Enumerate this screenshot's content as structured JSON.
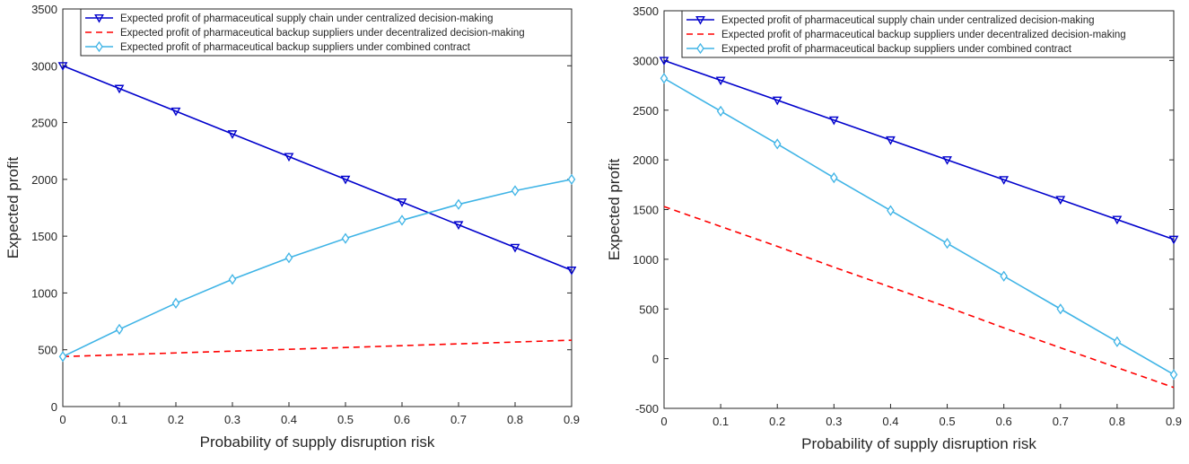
{
  "chart_data": [
    {
      "type": "line",
      "xlabel": "Probability of supply disruption risk",
      "ylabel": "Expected profit",
      "xlim": [
        0,
        0.9
      ],
      "ylim": [
        0,
        3500
      ],
      "xticks": [
        "0",
        "0.1",
        "0.2",
        "0.3",
        "0.4",
        "0.5",
        "0.6",
        "0.7",
        "0.8",
        "0.9"
      ],
      "yticks": [
        "0",
        "500",
        "1000",
        "1500",
        "2000",
        "2500",
        "3000",
        "3500"
      ],
      "x": [
        0,
        0.1,
        0.2,
        0.3,
        0.4,
        0.5,
        0.6,
        0.7,
        0.8,
        0.9
      ],
      "legend_position": "top",
      "series": [
        {
          "name": "Expected profit of pharmaceutical supply chain under centralized decision-making",
          "color": "#0000cc",
          "style": "solid",
          "marker": "triangle-down",
          "values": [
            3000,
            2800,
            2600,
            2400,
            2200,
            2000,
            1800,
            1600,
            1400,
            1200
          ]
        },
        {
          "name": "Expected profit of pharmaceutical backup suppliers under decentralized decision-making",
          "color": "#ff0000",
          "style": "dashed",
          "marker": "none",
          "values": [
            440,
            456,
            472,
            488,
            504,
            520,
            536,
            552,
            568,
            584
          ]
        },
        {
          "name": "Expected profit of pharmaceutical backup suppliers under combined contract",
          "color": "#3fb4e6",
          "style": "solid",
          "marker": "diamond",
          "values": [
            440,
            680,
            910,
            1120,
            1310,
            1480,
            1640,
            1780,
            1900,
            2000
          ]
        }
      ]
    },
    {
      "type": "line",
      "xlabel": "Probability of supply disruption risk",
      "ylabel": "Expected profit",
      "xlim": [
        0,
        0.9
      ],
      "ylim": [
        -500,
        3500
      ],
      "xticks": [
        "0",
        "0.1",
        "0.2",
        "0.3",
        "0.4",
        "0.5",
        "0.6",
        "0.7",
        "0.8",
        "0.9"
      ],
      "yticks": [
        "-500",
        "0",
        "500",
        "1000",
        "1500",
        "2000",
        "2500",
        "3000",
        "3500"
      ],
      "x": [
        0,
        0.1,
        0.2,
        0.3,
        0.4,
        0.5,
        0.6,
        0.7,
        0.8,
        0.9
      ],
      "legend_position": "top",
      "series": [
        {
          "name": "Expected profit of pharmaceutical supply chain under centralized decision-making",
          "color": "#0000cc",
          "style": "solid",
          "marker": "triangle-down",
          "values": [
            3000,
            2800,
            2600,
            2400,
            2200,
            2000,
            1800,
            1600,
            1400,
            1200
          ]
        },
        {
          "name": "Expected profit of pharmaceutical backup suppliers under decentralized decision-making",
          "color": "#ff0000",
          "style": "dashed",
          "marker": "none",
          "values": [
            1530,
            1330,
            1130,
            920,
            720,
            520,
            310,
            110,
            -90,
            -290
          ]
        },
        {
          "name": "Expected profit of pharmaceutical backup suppliers under combined contract",
          "color": "#3fb4e6",
          "style": "solid",
          "marker": "diamond",
          "values": [
            2820,
            2490,
            2160,
            1820,
            1490,
            1160,
            830,
            500,
            170,
            -160
          ]
        }
      ]
    }
  ]
}
